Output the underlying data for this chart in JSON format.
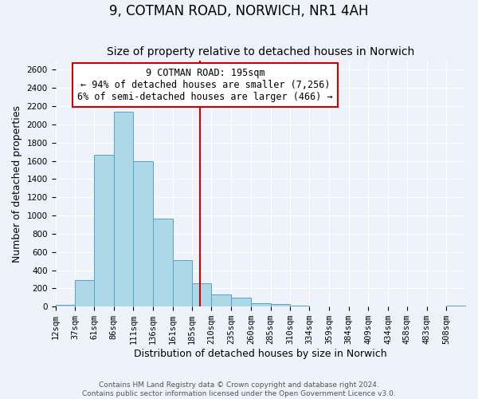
{
  "title": "9, COTMAN ROAD, NORWICH, NR1 4AH",
  "subtitle": "Size of property relative to detached houses in Norwich",
  "xlabel": "Distribution of detached houses by size in Norwich",
  "ylabel": "Number of detached properties",
  "bin_edges": [
    12,
    37,
    61,
    86,
    111,
    136,
    161,
    185,
    210,
    235,
    260,
    285,
    310,
    334,
    359,
    384,
    409,
    434,
    458,
    483,
    508,
    533
  ],
  "bin_labels": [
    "12sqm",
    "37sqm",
    "61sqm",
    "86sqm",
    "111sqm",
    "136sqm",
    "161sqm",
    "185sqm",
    "210sqm",
    "235sqm",
    "260sqm",
    "285sqm",
    "310sqm",
    "334sqm",
    "359sqm",
    "384sqm",
    "409sqm",
    "434sqm",
    "458sqm",
    "483sqm",
    "508sqm"
  ],
  "bar_heights": [
    20,
    295,
    1670,
    2140,
    1600,
    965,
    510,
    255,
    130,
    100,
    40,
    25,
    10,
    5,
    5,
    5,
    0,
    0,
    5,
    0,
    10
  ],
  "bar_color": "#add8e6",
  "bar_edgecolor": "#5a9fd4",
  "property_line_x": 195,
  "annotation_text_line1": "9 COTMAN ROAD: 195sqm",
  "annotation_text_line2": "← 94% of detached houses are smaller (7,256)",
  "annotation_text_line3": "6% of semi-detached houses are larger (466) →",
  "annotation_box_color": "#ffffff",
  "annotation_border_color": "#cc0000",
  "vline_color": "#cc0000",
  "ylim": [
    0,
    2700
  ],
  "yticks": [
    0,
    200,
    400,
    600,
    800,
    1000,
    1200,
    1400,
    1600,
    1800,
    2000,
    2200,
    2400,
    2600
  ],
  "background_color": "#eef2fb",
  "grid_color": "#ffffff",
  "title_fontsize": 12,
  "subtitle_fontsize": 10,
  "axis_label_fontsize": 9,
  "tick_fontsize": 7.5,
  "annotation_fontsize": 8.5,
  "footer_fontsize": 6.5
}
